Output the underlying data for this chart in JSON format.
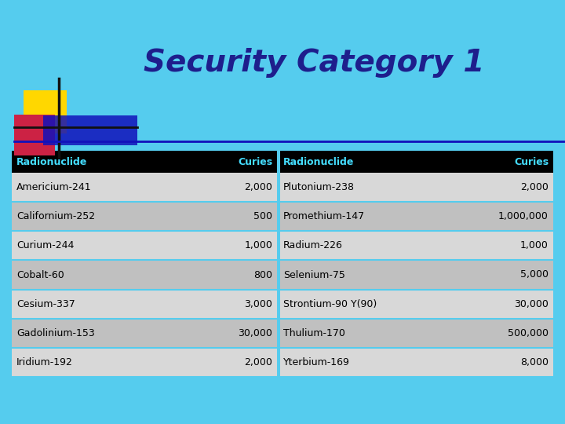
{
  "title": "Security Category 1",
  "title_color": "#1E1E8C",
  "bg_color": "#55CCEE",
  "header_bg": "#000000",
  "header_text_color": "#44DDFF",
  "col_headers": [
    "Radionuclide",
    "Curies",
    "Radionuclide",
    "Curies"
  ],
  "rows": [
    [
      "Americium-241",
      "2,000",
      "Plutonium-238",
      "2,000"
    ],
    [
      "Californium-252",
      "500",
      "Promethium-147",
      "1,000,000"
    ],
    [
      "Curium-244",
      "1,000",
      "Radium-226",
      "1,000"
    ],
    [
      "Cobalt-60",
      "800",
      "Selenium-75",
      "5,000"
    ],
    [
      "Cesium-337",
      "3,000",
      "Strontium-90 Y(90)",
      "30,000"
    ],
    [
      "Gadolinium-153",
      "30,000",
      "Thulium-170",
      "500,000"
    ],
    [
      "Iridium-192",
      "2,000",
      "Yterbium-169",
      "8,000"
    ]
  ],
  "row_colors_even": "#D8D8D8",
  "row_colors_odd": "#C0C0C0",
  "logo_yellow": "#FFD700",
  "logo_red": "#CC2244",
  "logo_blue": "#1111BB",
  "line_color": "#1111BB"
}
